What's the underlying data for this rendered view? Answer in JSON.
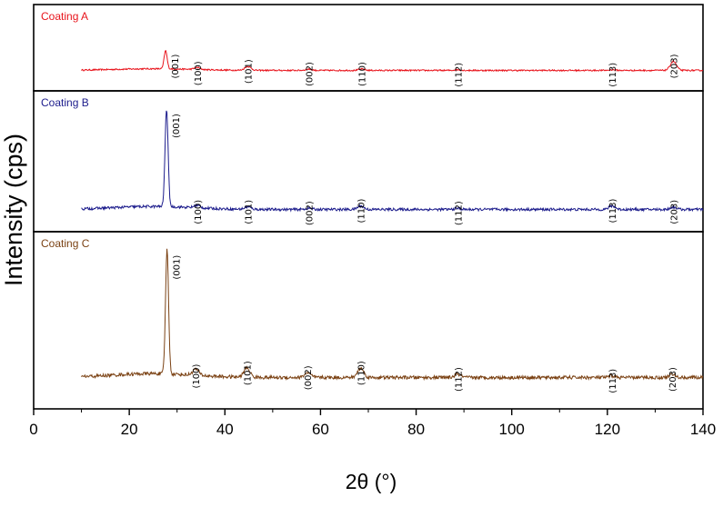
{
  "chart_data": {
    "type": "line",
    "xlabel": "2θ (°)",
    "ylabel": "Intensity (cps)",
    "xlim": [
      0,
      140
    ],
    "xticks": [
      0,
      20,
      40,
      60,
      80,
      100,
      120,
      140
    ],
    "grid": false,
    "series": [
      {
        "name": "Coating A",
        "color": "#e8141c",
        "ymax": 100,
        "baseline": 12,
        "peaks": [
          {
            "label": "(001)",
            "two_theta": 27.6,
            "height": 28
          },
          {
            "label": "(100)",
            "two_theta": 34.2,
            "height": 3
          },
          {
            "label": "(101)",
            "two_theta": 44.8,
            "height": 6
          },
          {
            "label": "(002)",
            "two_theta": 57.5,
            "height": 2
          },
          {
            "label": "(110)",
            "two_theta": 68.6,
            "height": 2
          },
          {
            "label": "(112)",
            "two_theta": 88.7,
            "height": 1
          },
          {
            "label": "(113)",
            "two_theta": 121.0,
            "height": 1
          },
          {
            "label": "(203)",
            "two_theta": 133.8,
            "height": 14
          }
        ]
      },
      {
        "name": "Coating B",
        "color": "#1c1c8c",
        "ymax": 100,
        "baseline": 8,
        "peaks": [
          {
            "label": "(001)",
            "two_theta": 27.8,
            "height": 82
          },
          {
            "label": "(100)",
            "two_theta": 34.2,
            "height": 2
          },
          {
            "label": "(101)",
            "two_theta": 44.8,
            "height": 2
          },
          {
            "label": "(002)",
            "two_theta": 57.5,
            "height": 1
          },
          {
            "label": "(110)",
            "two_theta": 68.4,
            "height": 3
          },
          {
            "label": "(112)",
            "two_theta": 88.7,
            "height": 1
          },
          {
            "label": "(113)",
            "two_theta": 121.0,
            "height": 3
          },
          {
            "label": "(203)",
            "two_theta": 133.8,
            "height": 2
          }
        ]
      },
      {
        "name": "Coating C",
        "color": "#7b4214",
        "ymax": 100,
        "baseline": 12,
        "peaks": [
          {
            "label": "(001)",
            "two_theta": 27.9,
            "height": 80
          },
          {
            "label": "(100)",
            "two_theta": 33.9,
            "height": 4
          },
          {
            "label": "(101)",
            "two_theta": 44.6,
            "height": 6
          },
          {
            "label": "(002)",
            "two_theta": 57.3,
            "height": 3
          },
          {
            "label": "(110)",
            "two_theta": 68.4,
            "height": 6
          },
          {
            "label": "(112)",
            "two_theta": 88.7,
            "height": 2
          },
          {
            "label": "(113)",
            "two_theta": 121.0,
            "height": 1
          },
          {
            "label": "(203)",
            "two_theta": 133.5,
            "height": 2
          }
        ]
      }
    ]
  }
}
